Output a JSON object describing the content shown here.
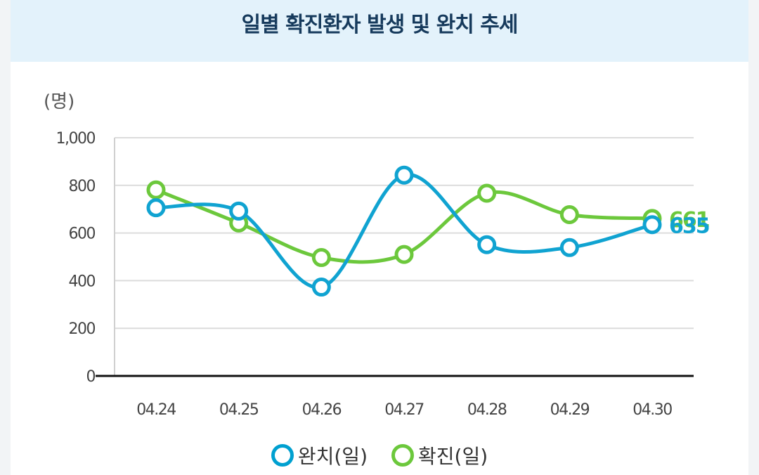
{
  "title": "일별 확진환자 발생 및 완치 추세",
  "chart_data": {
    "type": "line",
    "unit_label": "(명)",
    "categories": [
      "04.24",
      "04.25",
      "04.26",
      "04.27",
      "04.28",
      "04.29",
      "04.30"
    ],
    "ylim": [
      0,
      1000
    ],
    "yticks": [
      0,
      200,
      400,
      600,
      800,
      1000
    ],
    "ytick_labels": [
      "0",
      "200",
      "400",
      "600",
      "800",
      "1,000"
    ],
    "grid": true,
    "legend_position": "bottom",
    "series": [
      {
        "name": "완치(일)",
        "color": "#10a3d1",
        "values": [
          706,
          692,
          373,
          843,
          551,
          539,
          635
        ],
        "end_label": "635"
      },
      {
        "name": "확진(일)",
        "color": "#6cc83c",
        "values": [
          781,
          642,
          497,
          510,
          767,
          677,
          661
        ],
        "end_label": "661"
      }
    ]
  }
}
